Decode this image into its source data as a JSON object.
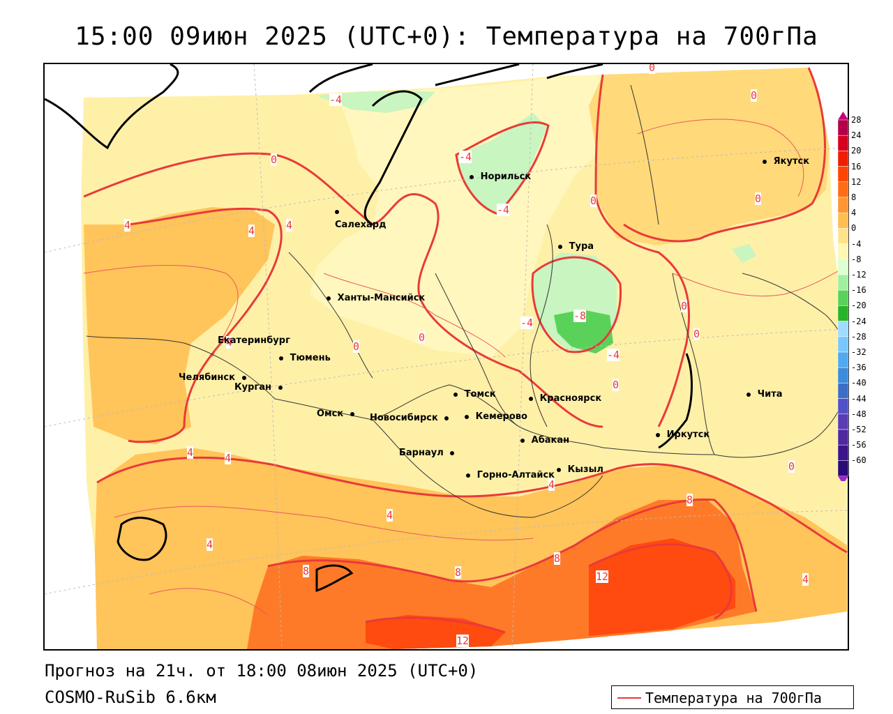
{
  "title": "15:00 09июн 2025 (UTC+0): Температура на 700гПа",
  "footer": {
    "forecast": "Прогноз на 21ч. от 18:00 08июн 2025 (UTC+0)",
    "model": "COSMO-RuSib 6.6км"
  },
  "legend": {
    "label": "Температура на 700гПа",
    "line_color": "#e83a3a"
  },
  "colorbar": {
    "ticks": [
      "28",
      "24",
      "20",
      "16",
      "12",
      "8",
      "4",
      "0",
      "-4",
      "-8",
      "-12",
      "-16",
      "-20",
      "-24",
      "-28",
      "-32",
      "-36",
      "-40",
      "-44",
      "-48",
      "-52",
      "-56",
      "-60"
    ],
    "colors": [
      "#b4004b",
      "#d7001e",
      "#f01e00",
      "#ff4600",
      "#ff6e14",
      "#ff9632",
      "#ffbe50",
      "#ffe38c",
      "#fff8b4",
      "#dcffd2",
      "#a0f0a0",
      "#5ad25a",
      "#28b428",
      "#a0dcff",
      "#78c8ff",
      "#50aaf0",
      "#3c8cdc",
      "#3c6ec8",
      "#5050c8",
      "#5a3cb4",
      "#5028a0",
      "#3c148c",
      "#280a78"
    ]
  },
  "cities": [
    {
      "name": "Якутск"
    },
    {
      "name": "Норильск"
    },
    {
      "name": "Салехард"
    },
    {
      "name": "Тура"
    },
    {
      "name": "Ханты-Мансийск"
    },
    {
      "name": "Екатеринбург"
    },
    {
      "name": "Тюмень"
    },
    {
      "name": "Челябинск"
    },
    {
      "name": "Курган"
    },
    {
      "name": "Омск"
    },
    {
      "name": "Новосибирск"
    },
    {
      "name": "Томск"
    },
    {
      "name": "Кемерово"
    },
    {
      "name": "Красноярск"
    },
    {
      "name": "Абакан"
    },
    {
      "name": "Барнаул"
    },
    {
      "name": "Горно-Алтайск"
    },
    {
      "name": "Кызыл"
    },
    {
      "name": "Иркутск"
    },
    {
      "name": "Чита"
    }
  ],
  "isoline_labels": [
    "0",
    "0",
    "0",
    "0",
    "0",
    "0",
    "0",
    "0",
    "0",
    "0",
    "0",
    "-4",
    "-4",
    "-4",
    "-4",
    "-4",
    "-8",
    "4",
    "4",
    "4",
    "4",
    "4",
    "4",
    "4",
    "4",
    "4",
    "4",
    "8",
    "8",
    "8",
    "8",
    "12",
    "12"
  ]
}
